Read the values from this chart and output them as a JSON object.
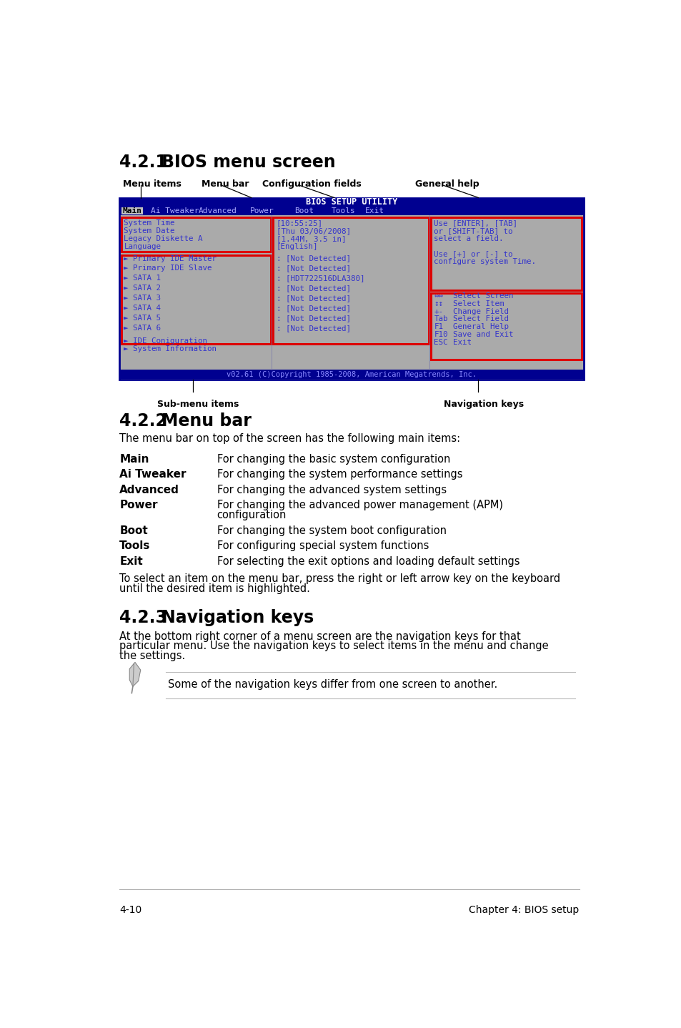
{
  "title_421": "4.2.1",
  "subtitle_421": "BIOS menu screen",
  "title_422": "4.2.2",
  "subtitle_422": "Menu bar",
  "title_423": "4.2.3",
  "subtitle_423": "Navigation keys",
  "label_menu_items": "Menu items",
  "label_menu_bar": "Menu bar",
  "label_config_fields": "Configuration fields",
  "label_general_help": "General help",
  "label_sub_menu": "Sub-menu items",
  "label_nav_keys": "Navigation keys",
  "bios_title": "BIOS SETUP UTILITY",
  "bios_menu_bar": [
    "Main",
    "Ai Tweaker",
    "Advanced",
    "Power",
    "Boot",
    "Tools",
    "Exit"
  ],
  "bios_left_col1": [
    "System Time",
    "System Date",
    "Legacy Diskette A",
    "Language"
  ],
  "bios_left_col2": [
    "Primary IDE Master",
    "Primary IDE Slave",
    "SATA 1",
    "SATA 2",
    "SATA 3",
    "SATA 4",
    "SATA 5",
    "SATA 6"
  ],
  "bios_left_col3": [
    "IDE Coniguration",
    "System Information"
  ],
  "bios_center_col1": [
    "[10:55:25]",
    "[Thu 03/06/2008]",
    "[1.44M, 3.5 in]",
    "[English]"
  ],
  "bios_center_col2": [
    ": [Not Detected]",
    ": [Not Detected]",
    ": [HDT722516DLA380]",
    ": [Not Detected]",
    ": [Not Detected]",
    ": [Not Detected]",
    ": [Not Detected]",
    ": [Not Detected]"
  ],
  "bios_help1": [
    "Use [ENTER], [TAB]",
    "or [SHIFT-TAB] to",
    "select a field.",
    "",
    "Use [+] or [-] to",
    "configure system Time."
  ],
  "bios_copyright": "v02.61 (C)Copyright 1985-2008, American Megatrends, Inc.",
  "menu_bar_intro": "The menu bar on top of the screen has the following main items:",
  "menu_bar_items": [
    [
      "Main",
      "For changing the basic system configuration"
    ],
    [
      "Ai Tweaker",
      "For changing the system performance settings"
    ],
    [
      "Advanced",
      "For changing the advanced system settings"
    ],
    [
      "Power",
      "For changing the advanced power management (APM)\nconfiguration"
    ],
    [
      "Boot",
      "For changing the system boot configuration"
    ],
    [
      "Tools",
      "For configuring special system functions"
    ],
    [
      "Exit",
      "For selecting the exit options and loading default settings"
    ]
  ],
  "menu_bar_note": "To select an item on the menu bar, press the right or left arrow key on the keyboard\nuntil the desired item is highlighted.",
  "nav_keys_text1": "At the bottom right corner of a menu screen are the navigation keys for that",
  "nav_keys_text2": "particular menu. Use the navigation keys to select items in the menu and change",
  "nav_keys_text3": "the settings.",
  "note_text": "Some of the navigation keys differ from one screen to another.",
  "footer_left": "4-10",
  "footer_right": "Chapter 4: BIOS setup",
  "bg_color": "#ffffff",
  "bios_bg": "#aaaaaa",
  "bios_dark_blue": "#000090",
  "bios_text_color": "#3333cc",
  "bios_border_red": "#dd0000",
  "bios_copyright_color": "#8888ff"
}
